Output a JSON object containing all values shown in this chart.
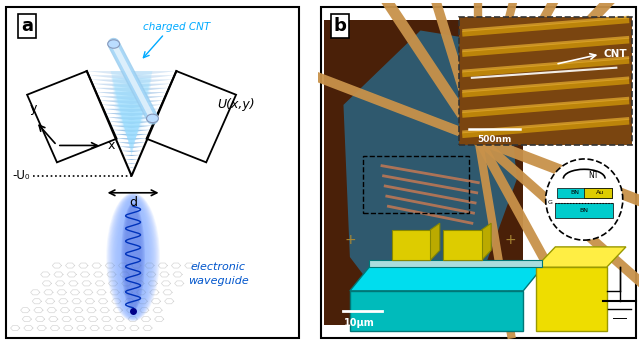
{
  "fig_width": 6.42,
  "fig_height": 3.45,
  "bg_color": "#ffffff",
  "panel_a_label": "a",
  "panel_b_label": "b",
  "charged_cnt_text": "charged CNT",
  "charged_cnt_color": "#00aaff",
  "u_xy_text": "U(x,y)",
  "minus_u0_text": "-U₀",
  "d_text": "d",
  "x_label": "x",
  "y_label": "y",
  "waveguide_text": "electronic\nwaveguide",
  "waveguide_color": "#0055cc",
  "cnt_text": "CNT",
  "scale_500nm": "500nm",
  "scale_10um": "10μm",
  "nt_text": "NT",
  "bn_text": "BN",
  "au_text": "Au",
  "g_text": "G",
  "bn2_text": "BN",
  "electrode_color": "#c8924a",
  "graphene_flake_color": "#2a5870",
  "brown_bg": "#4a2008",
  "afm_bg": "#7a4510",
  "cnt_blue": "#88ccff",
  "waveguide_glow": "#88aaff",
  "hex_color": "#c8c8c8"
}
